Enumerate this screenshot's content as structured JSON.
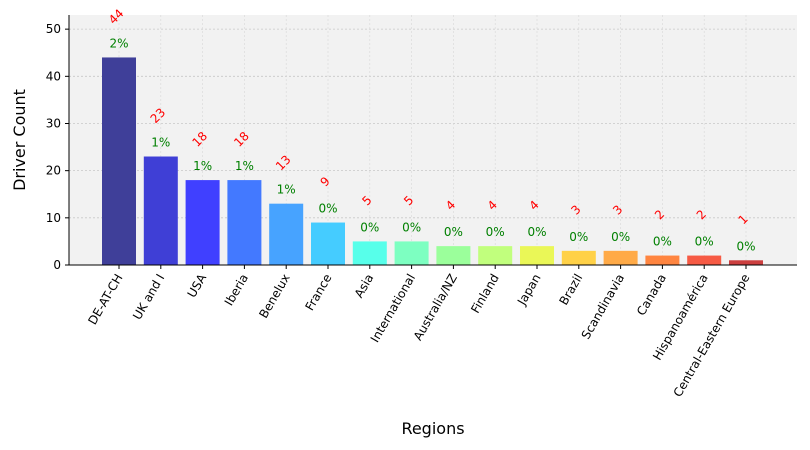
{
  "chart_data": {
    "type": "bar",
    "title": "",
    "xlabel": "Regions",
    "ylabel": "Driver Count",
    "ylim": [
      0,
      53
    ],
    "yticks": [
      0,
      10,
      20,
      30,
      40,
      50
    ],
    "grid": true,
    "categories": [
      "DE-AT-CH",
      "UK and I",
      "USA",
      "Iberia",
      "Benelux",
      "France",
      "Asia",
      "International",
      "Australia/NZ",
      "Finland",
      "Japan",
      "Brazil",
      "Scandinavia",
      "Canada",
      "Hispanoamérica",
      "Central-Eastern Europe"
    ],
    "values": [
      44,
      23,
      18,
      18,
      13,
      9,
      5,
      5,
      4,
      4,
      4,
      3,
      3,
      2,
      2,
      1
    ],
    "value_labels": [
      "44",
      "23",
      "18",
      "18",
      "13",
      "9",
      "5",
      "5",
      "4",
      "4",
      "4",
      "3",
      "3",
      "2",
      "2",
      "1"
    ],
    "percent_labels": [
      "2%",
      "1%",
      "1%",
      "1%",
      "1%",
      "0%",
      "0%",
      "0%",
      "0%",
      "0%",
      "0%",
      "0%",
      "0%",
      "0%",
      "0%",
      "0%"
    ],
    "colors": [
      "#3f3f99",
      "#3f3fd6",
      "#4040ff",
      "#4379ff",
      "#47a3ff",
      "#45ccff",
      "#57ffea",
      "#7dffc1",
      "#9bff9b",
      "#c1ff7d",
      "#eaf757",
      "#ffd147",
      "#ffaa47",
      "#ff8540",
      "#f65a44",
      "#cc3f3f"
    ],
    "value_label_color": "#ff0000",
    "percent_label_color": "#008000",
    "plot_background": "#f2f2f2"
  }
}
